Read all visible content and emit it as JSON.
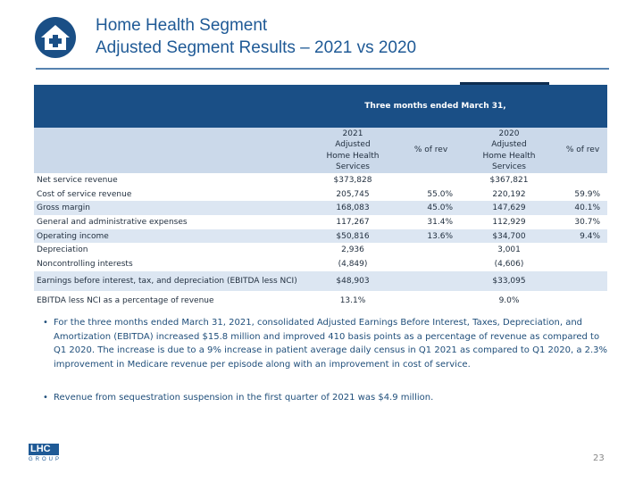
{
  "header": {
    "title": "Home Health Segment",
    "subtitle": "Adjusted Segment Results – 2021 vs 2020"
  },
  "table": {
    "caption": "Three months ended March 31,",
    "columns": [
      "2021\nAdjusted\nHome Health\nServices",
      "% of rev",
      "2020\nAdjusted\nHome Health\nServices",
      "% of rev"
    ],
    "rows": [
      [
        "Net service revenue",
        "$373,828",
        null,
        "$367,821",
        null
      ],
      [
        "Cost of service revenue",
        "205,745",
        "55.0%",
        "220,192",
        "59.9%"
      ],
      [
        "Gross margin",
        "168,083",
        "45.0%",
        "147,629",
        "40.1%"
      ],
      [
        "General and administrative expenses",
        "117,267",
        "31.4%",
        "112,929",
        "30.7%"
      ],
      [
        "Operating income",
        "$50,816",
        "13.6%",
        "$34,700",
        "9.4%"
      ],
      [
        "Depreciation",
        "2,936",
        null,
        "3,001",
        null
      ],
      [
        "Noncontrolling interests",
        "(4,849)",
        null,
        "(4,606)",
        null
      ],
      [
        "Earnings before interest, tax, and depreciation (EBITDA less NCI)",
        "$48,903",
        null,
        "$33,095",
        null
      ],
      [
        "EBITDA less NCI as a percentage of revenue",
        "13.1%",
        null,
        "9.0%",
        null
      ]
    ]
  },
  "bullets": [
    "For the three months ended March 31, 2021, consolidated Adjusted Earnings Before Interest, Taxes, Depreciation, and Amortization (EBITDA) increased $15.8 million and improved 410 basis points as a percentage of revenue as compared to Q1 2020. The increase is due to a 9% increase in patient average daily census in Q1 2021 as compared to Q1 2020, a 2.3% improvement in Medicare revenue per episode along with an improvement in cost of service.",
    "Revenue from sequestration suspension in the first quarter of 2021 was $4.9 million."
  ],
  "logo": {
    "name": "LHC",
    "tag": "GROUP"
  },
  "page_number": "23"
}
